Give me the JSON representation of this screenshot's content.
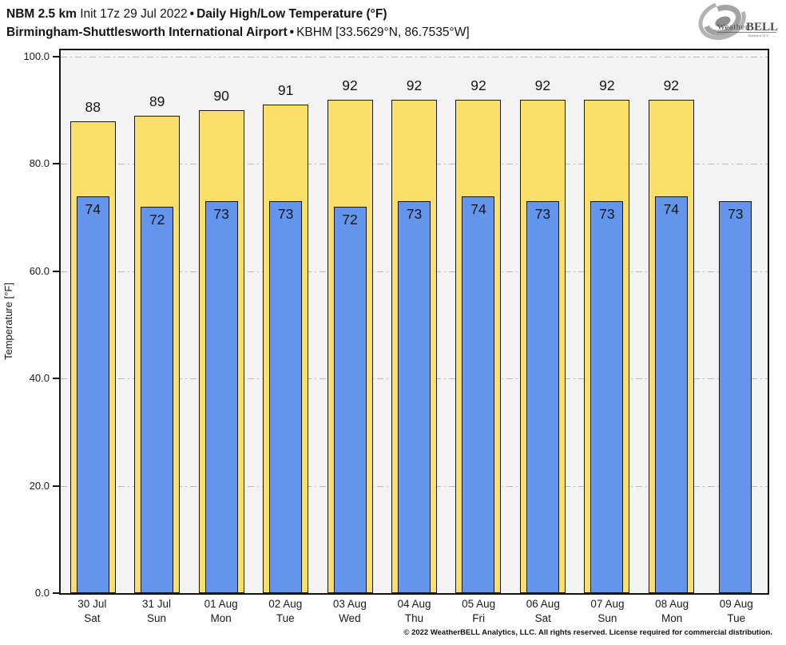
{
  "header": {
    "model": "NBM 2.5 km",
    "init": "Init 17z 29 Jul 2022",
    "separator": "•",
    "product": "Daily High/Low Temperature (°F)",
    "location": "Birmingham-Shuttlesworth International Airport",
    "station": "KBHM [33.5629°N, 86.7535°W]"
  },
  "logo": {
    "weather": "Weather",
    "bell": "BELL",
    "sub": "Analytics LLC"
  },
  "chart_data": {
    "type": "bar",
    "title": "Daily High/Low Temperature (°F)",
    "ylabel": "Temperature [°F]",
    "ylim": [
      0,
      101.2
    ],
    "yticks": [
      0,
      20,
      40,
      60,
      80,
      100
    ],
    "ytick_labels": [
      "0.0",
      "20.0",
      "40.0",
      "60.0",
      "80.0",
      "100.0"
    ],
    "grid": "horizontal dash-dot",
    "legend": "none",
    "plot_background": "#f3f3f3",
    "categories": [
      {
        "date": "30 Jul",
        "day": "Sat"
      },
      {
        "date": "31 Jul",
        "day": "Sun"
      },
      {
        "date": "01 Aug",
        "day": "Mon"
      },
      {
        "date": "02 Aug",
        "day": "Tue"
      },
      {
        "date": "03 Aug",
        "day": "Wed"
      },
      {
        "date": "04 Aug",
        "day": "Thu"
      },
      {
        "date": "05 Aug",
        "day": "Fri"
      },
      {
        "date": "06 Aug",
        "day": "Sat"
      },
      {
        "date": "07 Aug",
        "day": "Sun"
      },
      {
        "date": "08 Aug",
        "day": "Mon"
      },
      {
        "date": "09 Aug",
        "day": "Tue"
      }
    ],
    "series": [
      {
        "name": "Daily High",
        "color": "#FBDF69",
        "values": [
          88,
          89,
          90,
          91,
          92,
          92,
          92,
          92,
          92,
          92,
          null
        ]
      },
      {
        "name": "Daily Low",
        "color": "#6495ED",
        "values": [
          74,
          72,
          73,
          73,
          72,
          73,
          74,
          73,
          73,
          74,
          73
        ]
      }
    ]
  },
  "footer": "© 2022 WeatherBELL Analytics, LLC. All rights reserved. License required for commercial distribution."
}
